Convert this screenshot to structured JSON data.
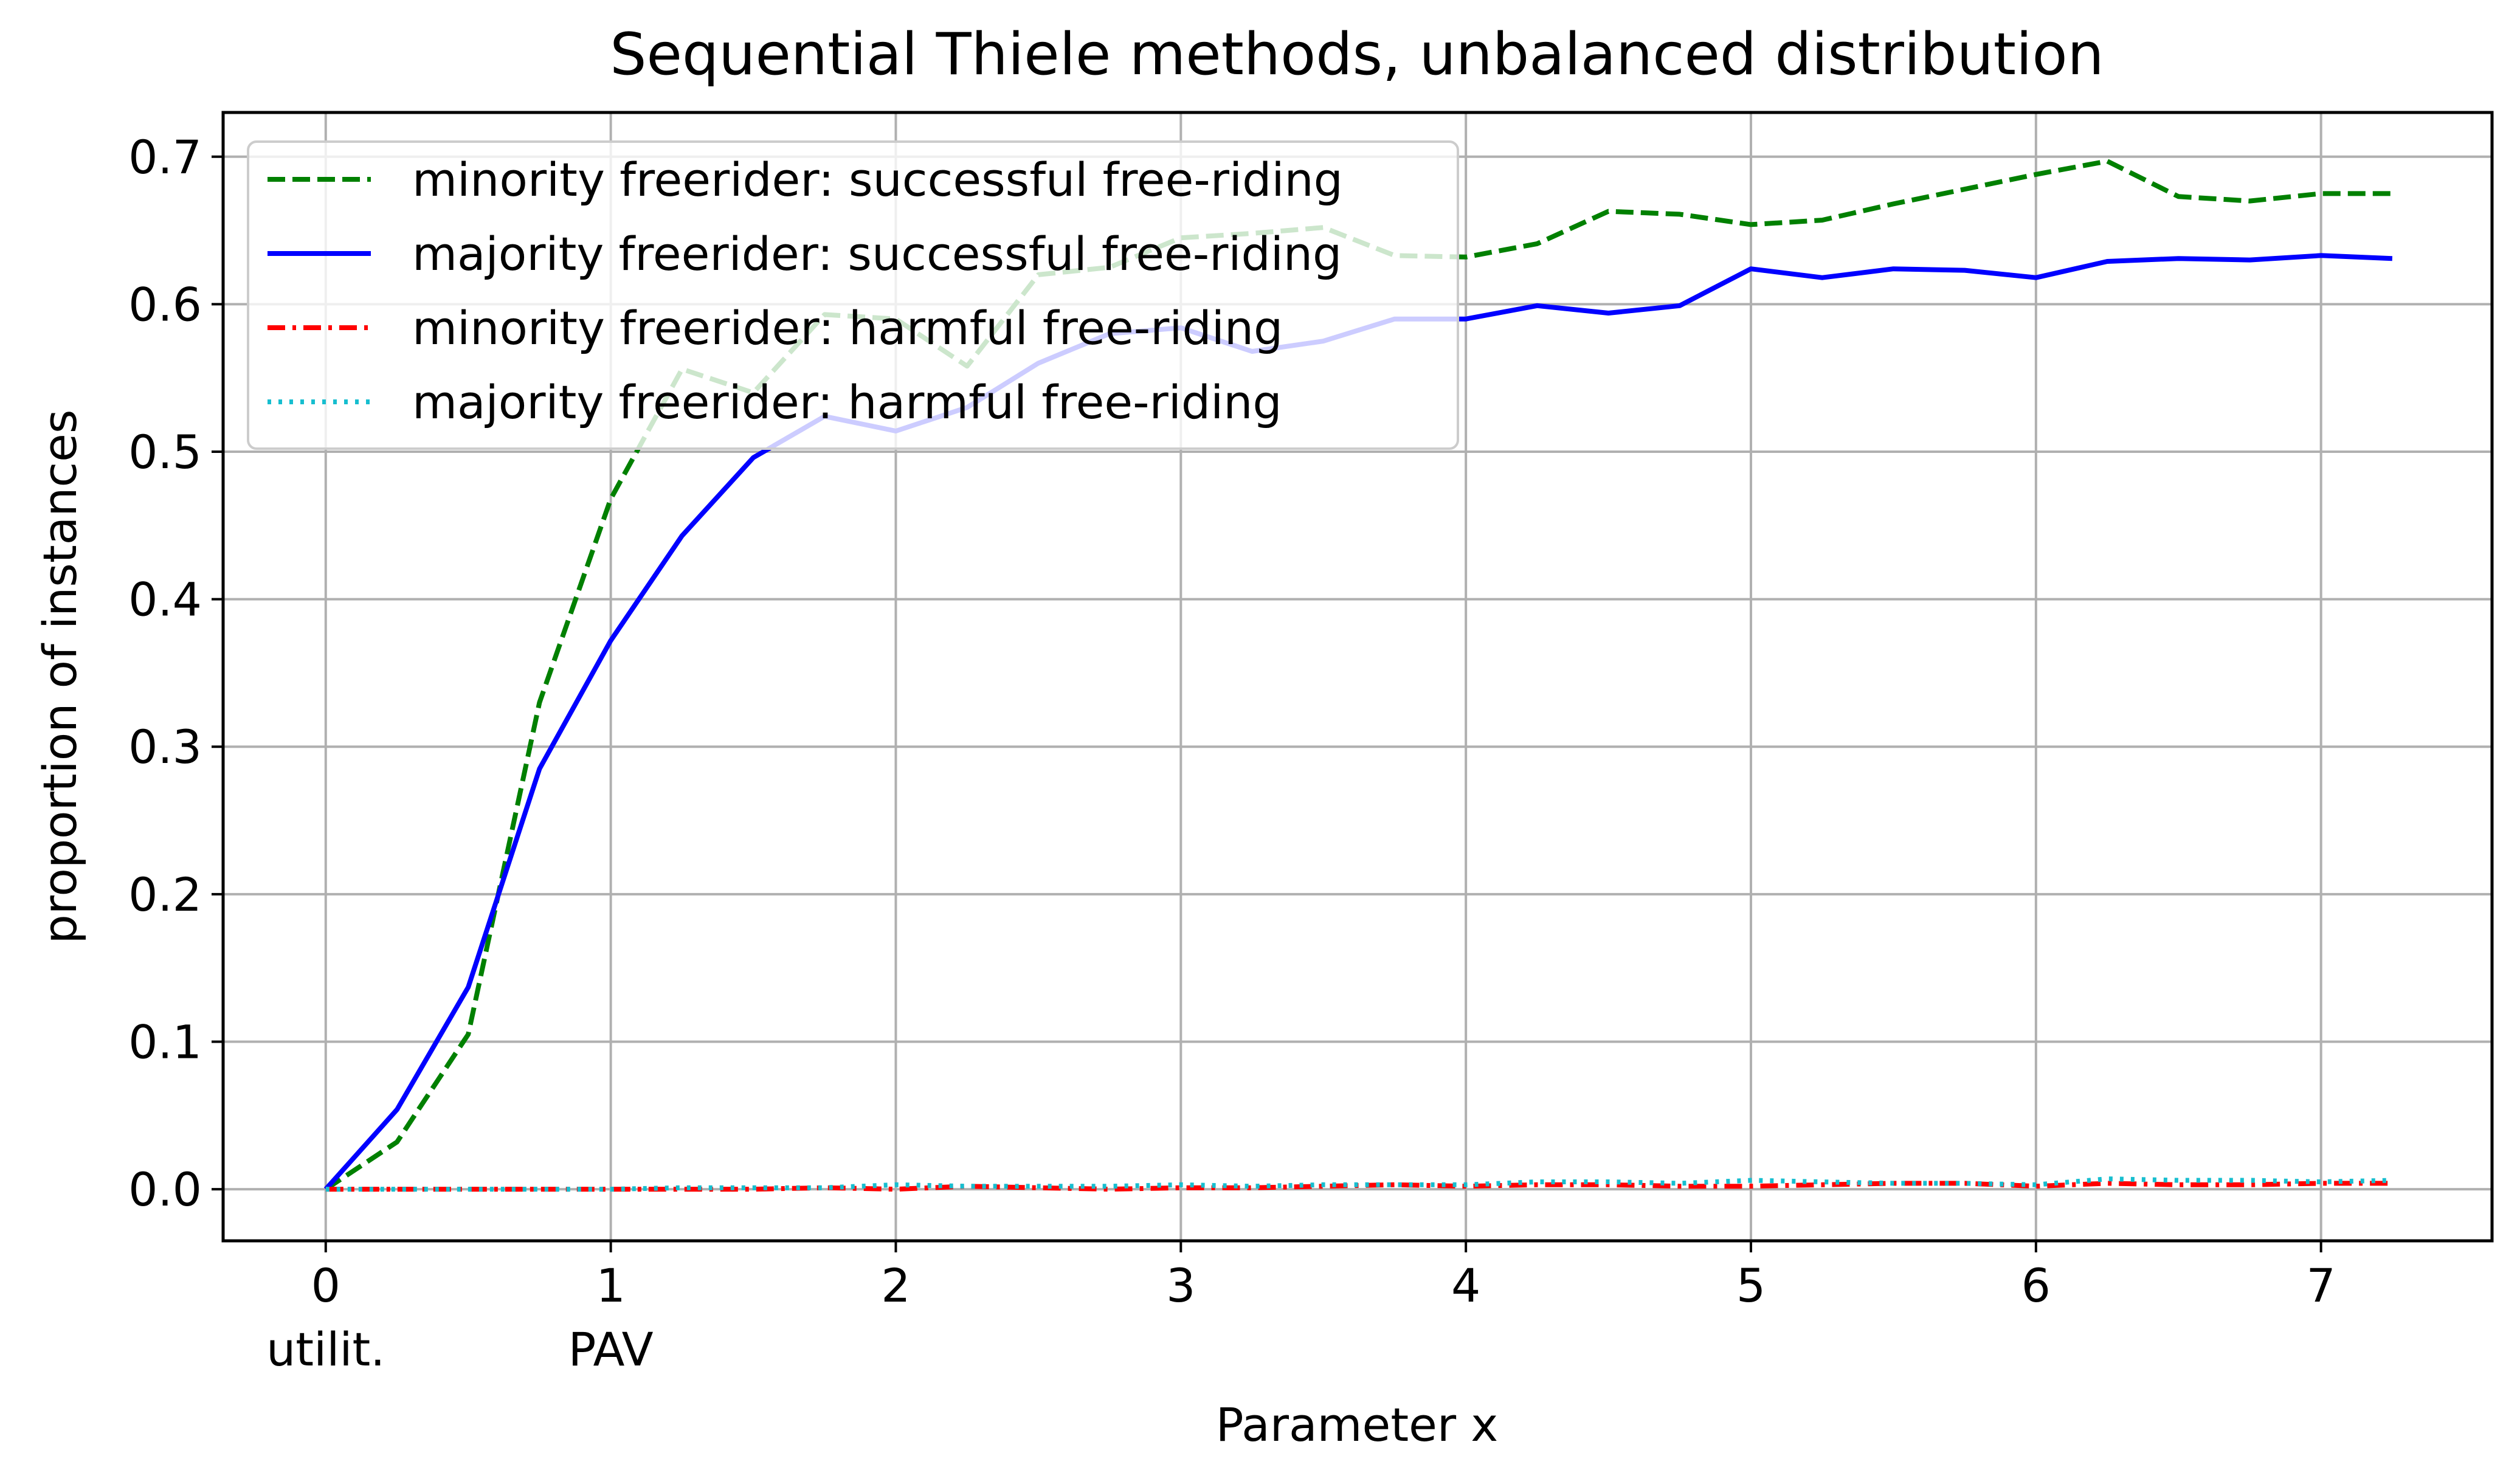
{
  "chart_data": {
    "type": "line",
    "title": "Sequential Thiele methods, unbalanced distribution",
    "xlabel": "Parameter x",
    "ylabel": "proportion of instances",
    "xlim": [
      -0.36,
      7.6
    ],
    "ylim": [
      -0.035,
      0.73
    ],
    "xticks": [
      0,
      1,
      2,
      3,
      4,
      5,
      6,
      7
    ],
    "xtick_labels": [
      "0",
      "1",
      "2",
      "3",
      "4",
      "5",
      "6",
      "7"
    ],
    "xtick_extra_labels": [
      {
        "x": 0,
        "label": "utilit."
      },
      {
        "x": 1,
        "label": "PAV"
      }
    ],
    "yticks": [
      0.0,
      0.1,
      0.2,
      0.3,
      0.4,
      0.5,
      0.6,
      0.7
    ],
    "ytick_labels": [
      "0.0",
      "0.1",
      "0.2",
      "0.3",
      "0.4",
      "0.5",
      "0.6",
      "0.7"
    ],
    "grid": true,
    "legend_position": "top-left",
    "x": [
      0,
      0.25,
      0.5,
      0.75,
      1,
      1.25,
      1.5,
      1.75,
      2,
      2.25,
      2.5,
      2.75,
      3,
      3.25,
      3.5,
      3.75,
      4,
      4.25,
      4.5,
      4.75,
      5,
      5.25,
      5.5,
      5.75,
      6,
      6.25,
      6.5,
      6.75,
      7,
      7.25
    ],
    "series": [
      {
        "name": "minority freerider: successful free-riding",
        "color": "#008000",
        "style": "dashed",
        "values": [
          0.0,
          0.032,
          0.105,
          0.33,
          0.468,
          0.556,
          0.54,
          0.593,
          0.59,
          0.558,
          0.62,
          0.625,
          0.645,
          0.648,
          0.652,
          0.633,
          0.632,
          0.641,
          0.663,
          0.661,
          0.654,
          0.657,
          0.668,
          0.678,
          0.688,
          0.697,
          0.673,
          0.67,
          0.675,
          0.675
        ]
      },
      {
        "name": "majority freerider: successful free-riding",
        "color": "#0000ff",
        "style": "solid",
        "values": [
          0.0,
          0.054,
          0.137,
          0.285,
          0.372,
          0.443,
          0.496,
          0.524,
          0.514,
          0.53,
          0.56,
          0.58,
          0.584,
          0.568,
          0.575,
          0.59,
          0.59,
          0.599,
          0.594,
          0.599,
          0.624,
          0.618,
          0.624,
          0.623,
          0.618,
          0.629,
          0.631,
          0.63,
          0.633,
          0.631
        ]
      },
      {
        "name": "minority freerider: harmful free-riding",
        "color": "#ff0000",
        "style": "dashdot",
        "values": [
          0.0,
          0.0,
          0.0,
          0.0,
          0.0,
          0.0,
          0.0,
          0.001,
          0.0,
          0.002,
          0.001,
          0.0,
          0.001,
          0.001,
          0.002,
          0.003,
          0.002,
          0.003,
          0.003,
          0.002,
          0.002,
          0.003,
          0.004,
          0.004,
          0.002,
          0.004,
          0.003,
          0.003,
          0.004,
          0.004
        ]
      },
      {
        "name": "majority freerider: harmful free-riding",
        "color": "#17becf",
        "style": "dotted",
        "values": [
          0.0,
          0.0,
          0.0,
          0.0,
          0.0,
          0.001,
          0.001,
          0.001,
          0.003,
          0.002,
          0.002,
          0.002,
          0.003,
          0.002,
          0.003,
          0.003,
          0.003,
          0.005,
          0.005,
          0.004,
          0.006,
          0.005,
          0.004,
          0.004,
          0.003,
          0.007,
          0.006,
          0.006,
          0.005,
          0.006
        ]
      }
    ]
  }
}
